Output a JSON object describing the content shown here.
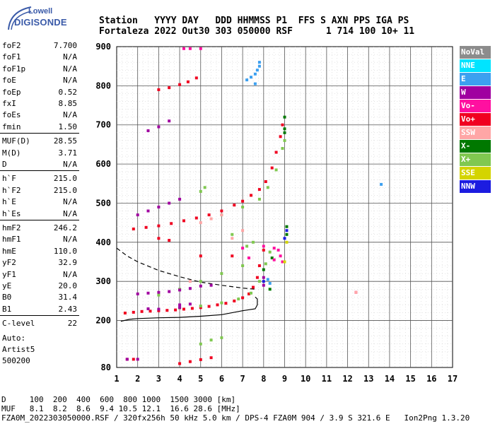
{
  "logo": {
    "line1": "Lowell",
    "line2": "DIGISONDE"
  },
  "header": {
    "line1": "Station   YYYY DAY   DDD HHMMSS P1  FFS S AXN PPS IGA PS",
    "line2": "Fortaleza 2022 Out30 303 050000 RSF      1 714 100 10+ 11"
  },
  "params": [
    {
      "k": "foF2",
      "v": "7.700"
    },
    {
      "k": "foF1",
      "v": "N/A"
    },
    {
      "k": "foF1p",
      "v": "N/A"
    },
    {
      "k": "foE",
      "v": "N/A"
    },
    {
      "k": "foEp",
      "v": "0.52"
    },
    {
      "k": "fxI",
      "v": "8.85"
    },
    {
      "k": "foEs",
      "v": "N/A"
    },
    {
      "k": "fmin",
      "v": "1.50"
    },
    {
      "k": "MUF(D)",
      "v": "28.55"
    },
    {
      "k": "M(D)",
      "v": "3.71"
    },
    {
      "k": "D",
      "v": "N/A"
    },
    {
      "k": "h`F",
      "v": "215.0"
    },
    {
      "k": "h`F2",
      "v": "215.0"
    },
    {
      "k": "h`E",
      "v": "N/A"
    },
    {
      "k": "h`Es",
      "v": "N/A"
    },
    {
      "k": "hmF2",
      "v": "246.2"
    },
    {
      "k": "hmF1",
      "v": "N/A"
    },
    {
      "k": "hmE",
      "v": "110.0"
    },
    {
      "k": "yF2",
      "v": "32.9"
    },
    {
      "k": "yF1",
      "v": "N/A"
    },
    {
      "k": "yE",
      "v": "20.0"
    },
    {
      "k": "B0",
      "v": "31.4"
    },
    {
      "k": "B1",
      "v": "2.43"
    },
    {
      "k": "C-level",
      "v": "22"
    }
  ],
  "auto": [
    "Auto:",
    "Artist5",
    "500200"
  ],
  "legend": [
    {
      "label": "NoVal",
      "color": "#8c8c8c"
    },
    {
      "label": "NNE",
      "color": "#00e4ff"
    },
    {
      "label": "E",
      "color": "#3ca0f0"
    },
    {
      "label": "W",
      "color": "#a000a0"
    },
    {
      "label": "Vo-",
      "color": "#ff10a0"
    },
    {
      "label": "Vo+",
      "color": "#f00020"
    },
    {
      "label": "SSW",
      "color": "#ffa6a6"
    },
    {
      "label": "X-",
      "color": "#007800"
    },
    {
      "label": "X+",
      "color": "#80c850"
    },
    {
      "label": "SSE",
      "color": "#d4d400"
    },
    {
      "label": "NNW",
      "color": "#1c1ce0"
    }
  ],
  "footer": {
    "line1": "D     100  200  400  600  800 1000  1500 3000 [km]",
    "line2": "MUF   8.1  8.2  8.6  9.4 10.5 12.1  16.6 28.6 [MHz]",
    "line3": "FZA0M_2022303050000.RSF / 320fx256h 50 kHz 5.0 km / DPS-4 FZA0M 904 / 3.9 S 321.6 E   Ion2Png 1.3.20"
  },
  "chart_data": {
    "type": "scatter",
    "xlim": [
      1,
      17
    ],
    "ylim": [
      80,
      900
    ],
    "x_ticks": [
      1,
      2,
      3,
      4,
      5,
      6,
      7,
      8,
      9,
      10,
      11,
      12,
      13,
      14,
      15,
      16,
      17
    ],
    "y_ticks": [
      80,
      200,
      300,
      400,
      500,
      600,
      700,
      800,
      900
    ],
    "grid": true,
    "series": [
      {
        "name": "Vo+",
        "color": "#f00020",
        "points": [
          [
            1.4,
            219
          ],
          [
            1.8,
            221
          ],
          [
            2.2,
            223
          ],
          [
            2.6,
            224
          ],
          [
            3.0,
            225
          ],
          [
            3.4,
            226
          ],
          [
            3.8,
            227
          ],
          [
            4.2,
            229
          ],
          [
            4.6,
            231
          ],
          [
            5.0,
            233
          ],
          [
            5.4,
            236
          ],
          [
            5.8,
            240
          ],
          [
            6.2,
            244
          ],
          [
            6.6,
            250
          ],
          [
            7.0,
            258
          ],
          [
            7.3,
            268
          ],
          [
            7.5,
            285
          ],
          [
            7.7,
            310
          ],
          [
            7.8,
            340
          ],
          [
            8.0,
            380
          ],
          [
            1.8,
            434
          ],
          [
            2.4,
            438
          ],
          [
            3.0,
            442
          ],
          [
            3.6,
            448
          ],
          [
            4.2,
            455
          ],
          [
            4.8,
            462
          ],
          [
            5.4,
            470
          ],
          [
            6.0,
            480
          ],
          [
            6.6,
            495
          ],
          [
            7.0,
            505
          ],
          [
            7.4,
            520
          ],
          [
            7.8,
            535
          ],
          [
            8.1,
            555
          ],
          [
            8.4,
            590
          ],
          [
            8.6,
            630
          ],
          [
            8.8,
            670
          ],
          [
            8.9,
            700
          ],
          [
            3.0,
            410
          ],
          [
            3.5,
            405
          ],
          [
            5.0,
            365
          ],
          [
            6.5,
            365
          ],
          [
            4.0,
            90
          ],
          [
            4.5,
            95
          ],
          [
            5.0,
            100
          ],
          [
            5.5,
            105
          ],
          [
            1.5,
            101
          ],
          [
            1.8,
            101
          ],
          [
            3.0,
            790
          ],
          [
            3.5,
            795
          ],
          [
            4.0,
            803
          ],
          [
            4.4,
            810
          ],
          [
            4.8,
            820
          ]
        ]
      },
      {
        "name": "X+",
        "color": "#80c850",
        "points": [
          [
            4.0,
            232
          ],
          [
            5.0,
            237
          ],
          [
            6.0,
            245
          ],
          [
            6.8,
            255
          ],
          [
            7.4,
            270
          ],
          [
            7.8,
            300
          ],
          [
            8.1,
            345
          ],
          [
            8.3,
            375
          ],
          [
            6.0,
            470
          ],
          [
            7.0,
            490
          ],
          [
            7.8,
            510
          ],
          [
            8.2,
            540
          ],
          [
            8.6,
            585
          ],
          [
            8.9,
            640
          ],
          [
            9.0,
            660
          ],
          [
            7.0,
            340
          ],
          [
            6.0,
            320
          ],
          [
            5.0,
            300
          ],
          [
            4.0,
            280
          ],
          [
            3.0,
            265
          ],
          [
            7.5,
            400
          ],
          [
            7.2,
            390
          ],
          [
            6.5,
            420
          ],
          [
            5.0,
            140
          ],
          [
            5.5,
            150
          ],
          [
            6.0,
            156
          ],
          [
            5.0,
            530
          ],
          [
            5.2,
            540
          ]
        ]
      },
      {
        "name": "X-",
        "color": "#007800",
        "points": [
          [
            9.0,
            720
          ],
          [
            9.0,
            690
          ],
          [
            9.0,
            680
          ],
          [
            9.1,
            440
          ],
          [
            9.1,
            420
          ],
          [
            8.4,
            360
          ],
          [
            8.0,
            330
          ],
          [
            8.3,
            280
          ]
        ]
      },
      {
        "name": "W",
        "color": "#a000a0",
        "points": [
          [
            2.0,
            268
          ],
          [
            2.5,
            270
          ],
          [
            3.0,
            272
          ],
          [
            3.5,
            274
          ],
          [
            4.0,
            278
          ],
          [
            4.5,
            282
          ],
          [
            5.0,
            288
          ],
          [
            5.5,
            290
          ],
          [
            2.5,
            230
          ],
          [
            3.0,
            229
          ],
          [
            4.0,
            233
          ],
          [
            1.5,
            101
          ],
          [
            2.0,
            101
          ],
          [
            2.0,
            470
          ],
          [
            2.5,
            480
          ],
          [
            3.0,
            490
          ],
          [
            3.5,
            500
          ],
          [
            4.0,
            510
          ],
          [
            2.5,
            685
          ],
          [
            3.0,
            695
          ],
          [
            3.5,
            710
          ],
          [
            8.0,
            290
          ],
          [
            8.0,
            310
          ],
          [
            4.0,
            240
          ],
          [
            4.5,
            242
          ]
        ]
      },
      {
        "name": "E",
        "color": "#3ca0f0",
        "points": [
          [
            7.2,
            815
          ],
          [
            7.4,
            822
          ],
          [
            7.6,
            830
          ],
          [
            7.7,
            840
          ],
          [
            7.8,
            850
          ],
          [
            7.8,
            860
          ],
          [
            7.6,
            805
          ],
          [
            13.6,
            548
          ],
          [
            8.2,
            305
          ],
          [
            8.3,
            295
          ]
        ]
      },
      {
        "name": "Vo-",
        "color": "#ff10a0",
        "points": [
          [
            8.7,
            380
          ],
          [
            8.8,
            365
          ],
          [
            8.9,
            350
          ],
          [
            8.5,
            385
          ],
          [
            4.2,
            895
          ],
          [
            4.5,
            895
          ],
          [
            5.0,
            895
          ],
          [
            7.0,
            385
          ],
          [
            7.3,
            360
          ],
          [
            8.0,
            390
          ],
          [
            12.4,
            272
          ],
          [
            8.5,
            355
          ]
        ]
      },
      {
        "name": "SSW",
        "color": "#ffa6a6",
        "points": [
          [
            12.4,
            272
          ],
          [
            5.0,
            450
          ],
          [
            5.5,
            460
          ],
          [
            6.0,
            470
          ],
          [
            7.0,
            430
          ],
          [
            6.5,
            410
          ],
          [
            4.5,
            300
          ]
        ]
      },
      {
        "name": "NNW",
        "color": "#1c1ce0",
        "points": [
          [
            9.0,
            410
          ],
          [
            9.1,
            430
          ],
          [
            8.0,
            300
          ]
        ]
      },
      {
        "name": "SSE",
        "color": "#d4d400",
        "points": [
          [
            9.0,
            350
          ],
          [
            9.1,
            400
          ]
        ]
      }
    ],
    "curves": [
      {
        "style": "dashed",
        "points": [
          [
            1.0,
            385
          ],
          [
            1.5,
            365
          ],
          [
            2.0,
            350
          ],
          [
            3.0,
            328
          ],
          [
            4.0,
            312
          ],
          [
            5.0,
            298
          ],
          [
            6.0,
            290
          ],
          [
            7.0,
            283
          ],
          [
            7.6,
            280
          ]
        ]
      },
      {
        "style": "solid",
        "points": [
          [
            1.2,
            198
          ],
          [
            1.6,
            203
          ],
          [
            2.0,
            205
          ],
          [
            3.0,
            207
          ],
          [
            4.0,
            208
          ],
          [
            5.0,
            211
          ],
          [
            6.0,
            215
          ],
          [
            7.0,
            225
          ],
          [
            7.6,
            230
          ],
          [
            7.7,
            240
          ],
          [
            7.7,
            255
          ],
          [
            7.6,
            260
          ]
        ]
      }
    ]
  }
}
